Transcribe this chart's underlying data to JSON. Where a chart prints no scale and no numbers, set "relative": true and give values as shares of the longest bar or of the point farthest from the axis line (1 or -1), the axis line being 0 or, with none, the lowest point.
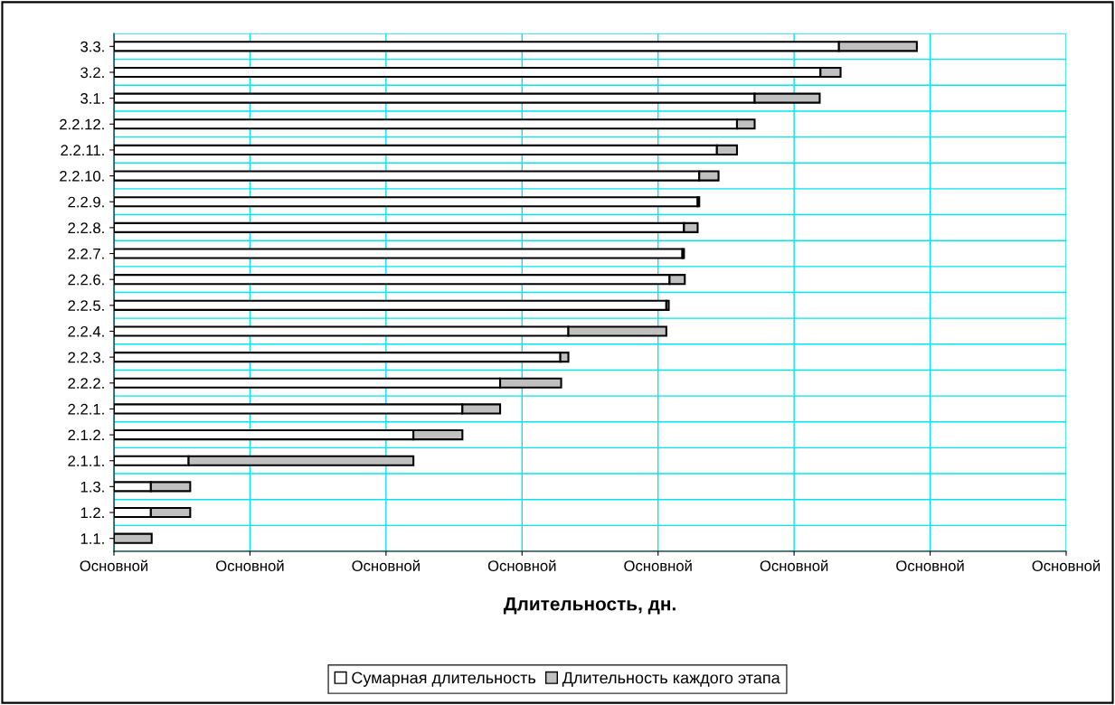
{
  "chart_data": {
    "type": "bar",
    "orientation": "horizontal",
    "stacked": true,
    "relative": true,
    "xlabel": "Длительность, дн.",
    "categories": [
      "3.3.",
      "3.2.",
      "3.1.",
      "2.2.12.",
      "2.2.11.",
      "2.2.10.",
      "2.2.9.",
      "2.2.8.",
      "2.2.7.",
      "2.2.6.",
      "2.2.5.",
      "2.2.4.",
      "2.2.3.",
      "2.2.2.",
      "2.2.1.",
      "2.1.2.",
      "2.1.1.",
      "1.3.",
      "1.2.",
      "1.1."
    ],
    "series": [
      {
        "name": "Сумарная длительность",
        "color": "#ffffff",
        "values": [
          0.903,
          0.88,
          0.798,
          0.776,
          0.751,
          0.729,
          0.727,
          0.71,
          0.708,
          0.692,
          0.688,
          0.566,
          0.556,
          0.481,
          0.434,
          0.373,
          0.093,
          0.046,
          0.046,
          0
        ]
      },
      {
        "name": "Длительность каждого этапа",
        "color": "#c0c0c0",
        "values": [
          0.097,
          0.025,
          0.081,
          0.022,
          0.025,
          0.024,
          0.002,
          0.017,
          0.002,
          0.019,
          0.003,
          0.122,
          0.01,
          0.076,
          0.047,
          0.061,
          0.28,
          0.049,
          0.049,
          0.047
        ]
      }
    ],
    "annotations": [
      "Основной",
      "Основной",
      "Основной",
      "Основной",
      "Основной",
      "Основной",
      "Основной",
      "Основной"
    ],
    "grid": true,
    "legend": "bottom"
  }
}
